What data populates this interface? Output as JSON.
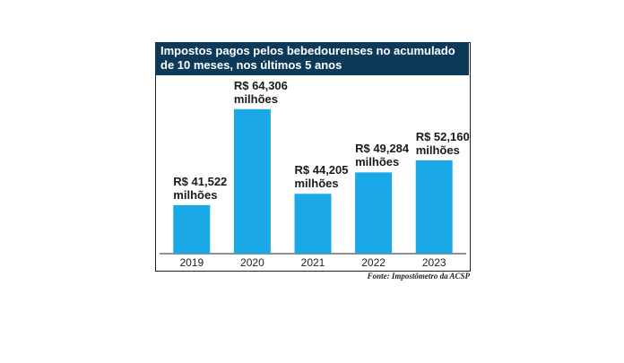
{
  "chart_data": {
    "type": "bar",
    "title": "Impostos pagos pelos bebedourenses no acumulado de 10 meses, nos últimos 5 anos",
    "source": "Fonte: Impostômetro da ACSP",
    "categories": [
      "2019",
      "2020",
      "2021",
      "2022",
      "2023"
    ],
    "values": [
      41.522,
      64.306,
      44.205,
      49.284,
      52.16
    ],
    "value_labels": [
      "R$ 41,522 milhões",
      "R$ 64,306 milhões",
      "R$ 44,205 milhões",
      "R$ 49,284 milhões",
      "R$ 52,160 milhões"
    ],
    "color": "#1aa9e6",
    "ylim": [
      30,
      70
    ]
  }
}
